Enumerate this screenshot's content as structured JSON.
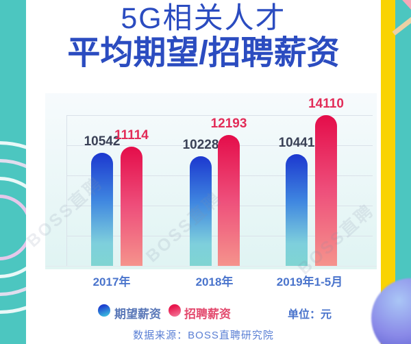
{
  "poster": {
    "title_line1": "5G相关人才",
    "title_line2": "平均期望/招聘薪资"
  },
  "chart_data": {
    "type": "bar",
    "title": "5G相关人才 平均期望/招聘薪资",
    "categories": [
      "2017年",
      "2018年",
      "2019年1-5月"
    ],
    "series": [
      {
        "name": "期望薪资",
        "color": "#1c38cf",
        "values": [
          10542,
          10228,
          10441
        ]
      },
      {
        "name": "招聘薪资",
        "color": "#e40d4a",
        "values": [
          11114,
          12193,
          14110
        ]
      }
    ],
    "unit_label": "单位：元",
    "xlabel": "",
    "ylabel": "",
    "ylim": [
      0,
      14500
    ],
    "grid": true,
    "legend_position": "bottom",
    "value_labels_shown": true
  },
  "footer": {
    "source": "数据来源：BOSS直聘研究院"
  },
  "watermark": {
    "text": "BOSS直聘"
  },
  "colors": {
    "teal_bg": "#4cc6c0",
    "yellow_strip": "#f9d303",
    "title_blue": "#2b4cc0",
    "axis_label_blue": "#4a74cc",
    "legend_expect_text": "#5a78b8",
    "legend_recruit_text": "#e34a6e",
    "source_blue": "#5a7fd4",
    "expect_bar_top": "#1c38cf",
    "expect_bar_mid": "#3f86e0",
    "expect_bar_bottom": "#7fd5d2",
    "recruit_bar_top": "#e40d4a",
    "recruit_bar_mid": "#ee4f7b",
    "recruit_bar_bottom": "#f5938c",
    "value_label_dark": "#3a4156",
    "value_label_red": "#e22c58",
    "gridline": "#d9e1e9"
  }
}
